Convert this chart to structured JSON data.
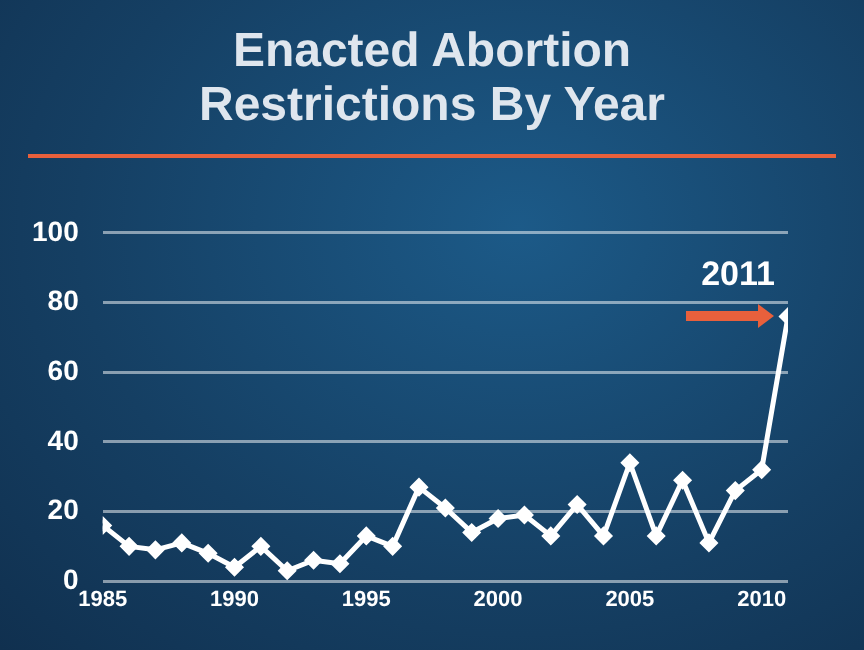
{
  "chart_data": {
    "type": "line",
    "title": "Enacted Abortion Restrictions By Year",
    "x": [
      1985,
      1986,
      1987,
      1988,
      1989,
      1990,
      1991,
      1992,
      1993,
      1994,
      1995,
      1996,
      1997,
      1998,
      1999,
      2000,
      2001,
      2002,
      2003,
      2004,
      2005,
      2006,
      2007,
      2008,
      2009,
      2010,
      2011
    ],
    "series": [
      {
        "color": "#ffffff",
        "values": [
          16,
          10,
          9,
          11,
          8,
          4,
          10,
          3,
          6,
          5,
          13,
          10,
          27,
          21,
          14,
          18,
          19,
          13,
          22,
          13,
          34,
          13,
          29,
          11,
          26,
          32,
          76
        ]
      }
    ],
    "xlim": [
      1985,
      2011
    ],
    "xticks": [
      1985,
      1990,
      1995,
      2000,
      2005,
      2010
    ],
    "ylim": [
      0,
      100
    ],
    "yticks": [
      0,
      20,
      40,
      60,
      80,
      100
    ],
    "grid": "y",
    "legend": false,
    "marker": "diamond",
    "line_style": "solid",
    "annotations": [
      {
        "text": "2011",
        "x": 2011,
        "y": 76
      }
    ]
  }
}
